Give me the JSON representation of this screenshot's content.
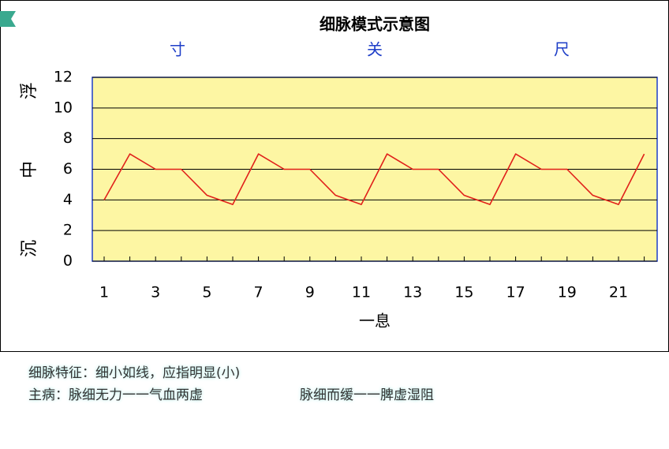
{
  "chart_data": {
    "type": "line",
    "title": "细脉模式示意图",
    "position_labels": [
      "寸",
      "关",
      "尺"
    ],
    "depth_labels": [
      "浮",
      "中",
      "沉"
    ],
    "x_label": "一息",
    "categories": [
      "1",
      null,
      "3",
      null,
      "5",
      null,
      "7",
      null,
      "9",
      null,
      "11",
      null,
      "13",
      null,
      "15",
      null,
      "17",
      null,
      "19",
      null,
      "21",
      null
    ],
    "values": [
      4,
      7,
      6,
      6,
      4.3,
      3.7,
      7,
      6,
      6,
      4.3,
      3.7,
      7,
      6,
      6,
      4.3,
      3.7,
      7,
      6,
      6,
      4.3,
      3.7,
      7
    ],
    "color": "#e0201a",
    "ylim": [
      0,
      12
    ],
    "yticks": [
      0,
      2,
      4,
      6,
      8,
      10,
      12
    ],
    "grid": true
  },
  "notes": {
    "feature": "细脉特征：细小如线，应指明显(小)",
    "disease_1": "主病：脉细无力一一气血两虚",
    "disease_2": "脉细而缓一一脾虚湿阻"
  }
}
